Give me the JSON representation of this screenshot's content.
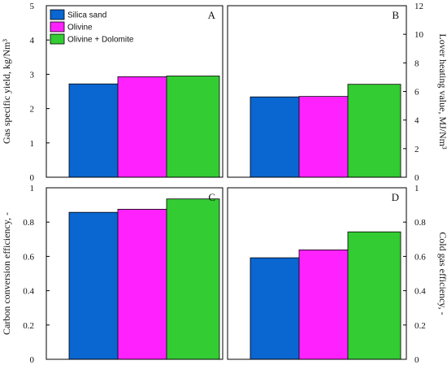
{
  "colors": {
    "silica_sand": "#0a66d0",
    "olivine": "#ff22ff",
    "olivine_dolomite": "#33cc33",
    "axis": "#000000"
  },
  "legend": {
    "placement": "top-left of panel A",
    "entries": [
      "Silica sand",
      "Olivine",
      "Olivine + Dolomite"
    ]
  },
  "chart_data": [
    {
      "type": "bar",
      "panel": "A",
      "categories": [
        "Silica sand",
        "Olivine",
        "Olivine + Dolomite"
      ],
      "values": [
        2.72,
        2.93,
        2.95
      ],
      "ylabel": "Gas specific yield, kg/Nm³",
      "ylim": [
        0,
        5
      ],
      "yticks": [
        "0",
        "1",
        "2",
        "3",
        "4",
        "5"
      ],
      "yaxis_side": "left",
      "grid": false
    },
    {
      "type": "bar",
      "panel": "B",
      "categories": [
        "Silica sand",
        "Olivine",
        "Olivine + Dolomite"
      ],
      "values": [
        5.62,
        5.65,
        6.5
      ],
      "ylabel": "Lover heating value, MJ/Nm³",
      "ylim": [
        0,
        12
      ],
      "yticks": [
        "0",
        "2",
        "4",
        "6",
        "8",
        "10",
        "12"
      ],
      "yaxis_side": "right",
      "grid": false
    },
    {
      "type": "bar",
      "panel": "C",
      "categories": [
        "Silica sand",
        "Olivine",
        "Olivine + Dolomite"
      ],
      "values": [
        0.857,
        0.875,
        0.935
      ],
      "ylabel": "Carbon conversion efficiency, -",
      "ylim": [
        0,
        1
      ],
      "yticks": [
        "0",
        "0.2",
        "0.4",
        "0.6",
        "0.8",
        "1"
      ],
      "yaxis_side": "left",
      "grid": false
    },
    {
      "type": "bar",
      "panel": "D",
      "categories": [
        "Silica sand",
        "Olivine",
        "Olivine + Dolomite"
      ],
      "values": [
        0.592,
        0.638,
        0.743
      ],
      "ylabel": "Cold gas efficiency, -",
      "ylim": [
        0,
        1
      ],
      "yticks": [
        "0",
        "0.2",
        "0.4",
        "0.6",
        "0.8",
        "1"
      ],
      "yaxis_side": "right",
      "grid": false
    }
  ]
}
